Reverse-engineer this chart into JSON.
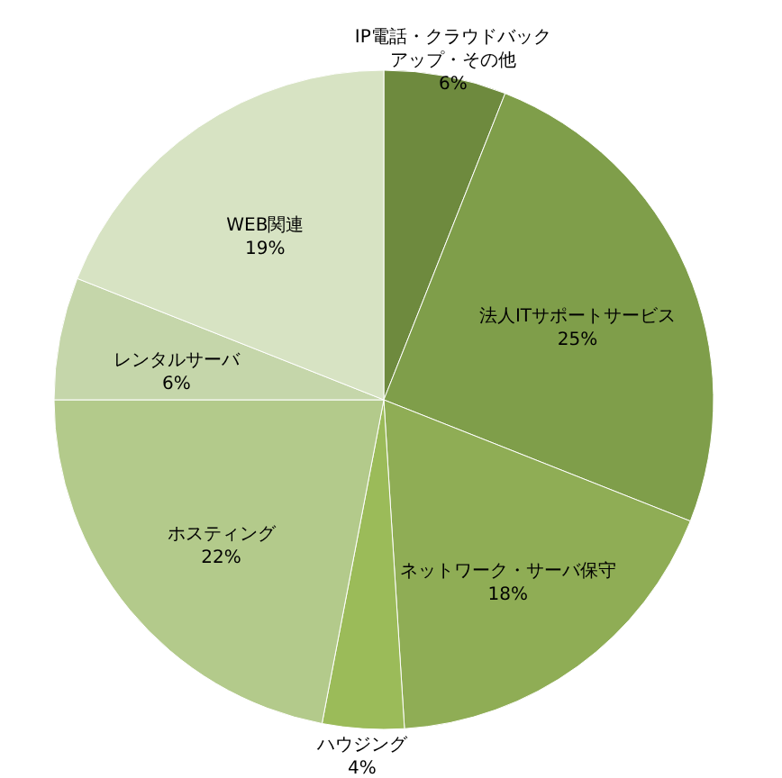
{
  "chart_data": {
    "type": "pie",
    "categories": [
      "IP電話・クラウドバックアップ・その他",
      "法人ITサポートサービス",
      "ネットワーク・サーバ保守",
      "ハウジング",
      "ホスティング",
      "レンタルサーバ",
      "WEB関連"
    ],
    "values": [
      6,
      25,
      18,
      4,
      22,
      6,
      19
    ],
    "value_labels": [
      "6%",
      "25%",
      "18%",
      "4%",
      "22%",
      "6%",
      "19%"
    ],
    "colors": [
      "#6e8a3e",
      "#7f9e4a",
      "#8fad55",
      "#9bbb59",
      "#b3ca8b",
      "#c5d6aa",
      "#d7e3c3"
    ]
  }
}
